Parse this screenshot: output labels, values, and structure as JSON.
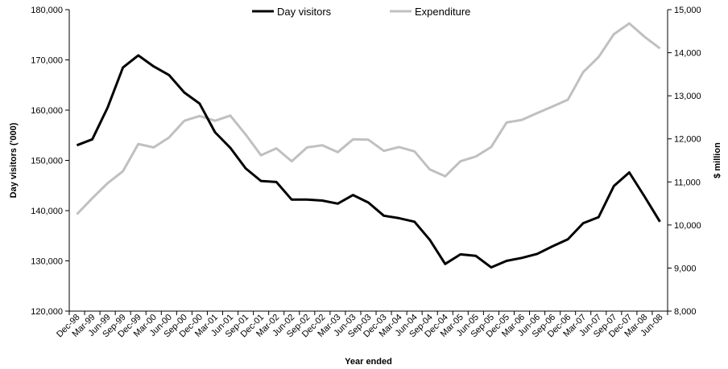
{
  "chart_data": {
    "type": "line",
    "title": "",
    "xlabel": "Year ended",
    "ylabel": "Day visitors ('000)",
    "y2label": "$ million",
    "ylim": [
      120000,
      180000
    ],
    "y2lim": [
      8000,
      15000
    ],
    "yticks": [
      "120,000",
      "130,000",
      "140,000",
      "150,000",
      "160,000",
      "170,000",
      "180,000"
    ],
    "y2ticks": [
      "8,000",
      "9,000",
      "10,000",
      "11,000",
      "12,000",
      "13,000",
      "14,000",
      "15,000"
    ],
    "ytick_values": [
      120000,
      130000,
      140000,
      150000,
      160000,
      170000,
      180000
    ],
    "y2tick_values": [
      8000,
      9000,
      10000,
      11000,
      12000,
      13000,
      14000,
      15000
    ],
    "categories": [
      "Dec-98",
      "Mar-99",
      "Jun-99",
      "Sep-99",
      "Dec-99",
      "Mar-00",
      "Jun-00",
      "Sep-00",
      "Dec-00",
      "Mar-01",
      "Jun-01",
      "Sep-01",
      "Dec-01",
      "Mar-02",
      "Jun-02",
      "Sep-02",
      "Dec-02",
      "Mar-03",
      "Jun-03",
      "Sep-03",
      "Dec-03",
      "Mar-04",
      "Jun-04",
      "Sep-04",
      "Dec-04",
      "Mar-05",
      "Jun-05",
      "Sep-05",
      "Dec-05",
      "Mar-06",
      "Jun-06",
      "Sep-06",
      "Dec-06",
      "Mar-07",
      "Jun-07",
      "Sep-07",
      "Dec-07",
      "Mar-08",
      "Jun-08"
    ],
    "legend_position": "top",
    "grid": false,
    "series": [
      {
        "name": "Day visitors",
        "axis": "left",
        "color": "#000000",
        "values": [
          153000,
          154200,
          160500,
          168500,
          170900,
          168700,
          167000,
          163500,
          161300,
          155600,
          152500,
          148400,
          145900,
          145700,
          142200,
          142200,
          142000,
          141400,
          143100,
          141600,
          139000,
          138500,
          137800,
          134200,
          129400,
          131300,
          131000,
          128700,
          130000,
          130600,
          131400,
          132900,
          134300,
          137500,
          138700,
          144900,
          147600,
          142800,
          137800
        ]
      },
      {
        "name": "Expenditure",
        "axis": "right",
        "color": "#c0c0c0",
        "values": [
          10250,
          10620,
          10970,
          11250,
          11880,
          11800,
          12030,
          12420,
          12530,
          12420,
          12540,
          12100,
          11620,
          11780,
          11480,
          11800,
          11850,
          11690,
          11990,
          11980,
          11720,
          11810,
          11710,
          11290,
          11130,
          11480,
          11590,
          11810,
          12380,
          12440,
          12600,
          12750,
          12910,
          13550,
          13900,
          14430,
          14680,
          14370,
          14100
        ]
      }
    ]
  }
}
